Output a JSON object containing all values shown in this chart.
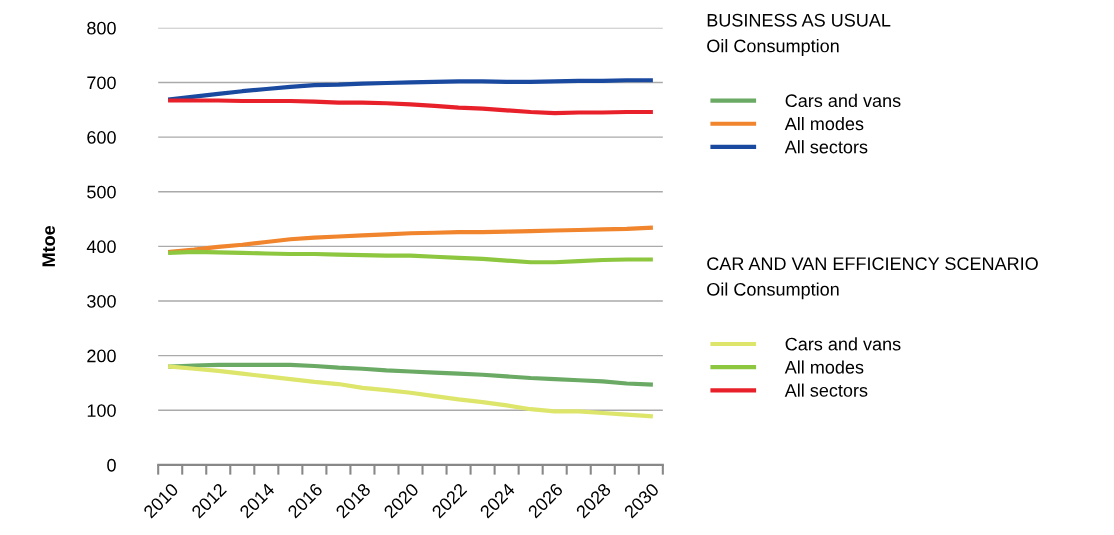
{
  "chart_data": {
    "type": "line",
    "ylabel": "Mtoe",
    "categories": [
      "2010",
      null,
      "2012",
      null,
      "2014",
      null,
      "2016",
      null,
      "2018",
      null,
      "2020",
      null,
      "2022",
      null,
      "2024",
      null,
      "2026",
      null,
      "2028",
      null,
      "2030"
    ],
    "series": [
      {
        "name": "Cars and vans",
        "color": "#6aaa64",
        "values": [
          180,
          182,
          183,
          183,
          183,
          183,
          181,
          178,
          176,
          173,
          171,
          169,
          167,
          165,
          162,
          159,
          157,
          155,
          153,
          149,
          147
        ]
      },
      {
        "name": "All modes",
        "color": "#f0852d",
        "values": [
          390,
          394,
          399,
          403,
          408,
          413,
          416,
          418,
          420,
          422,
          424,
          425,
          426,
          426,
          427,
          428,
          429,
          430,
          431,
          432,
          434
        ]
      },
      {
        "name": "All sectors",
        "color": "#1a4aa0",
        "values": [
          669,
          674,
          679,
          684,
          688,
          692,
          695,
          696,
          698,
          699,
          700,
          701,
          702,
          702,
          701,
          701,
          702,
          703,
          703,
          704,
          704
        ]
      },
      {
        "name": "Cars and vans",
        "color": "#dde56a",
        "values": [
          180,
          176,
          172,
          167,
          162,
          157,
          152,
          148,
          141,
          137,
          132,
          126,
          120,
          115,
          109,
          102,
          98,
          98,
          95,
          92,
          89
        ]
      },
      {
        "name": "All modes",
        "color": "#8dc63f",
        "values": [
          388,
          390,
          389,
          388,
          387,
          386,
          386,
          385,
          384,
          383,
          383,
          381,
          379,
          377,
          374,
          371,
          371,
          373,
          375,
          376,
          376
        ]
      },
      {
        "name": "All sectors",
        "color": "#e8202a",
        "values": [
          667,
          667,
          667,
          666,
          666,
          666,
          665,
          663,
          663,
          662,
          660,
          657,
          654,
          652,
          649,
          646,
          644,
          645,
          645,
          646,
          646
        ]
      }
    ],
    "annotations": [
      "BUSINESS AS USUAL",
      "Oil Consumption",
      "CAR AND VAN EFFICIENCY SCENARIO",
      "Oil Consumption"
    ],
    "ylim": [
      0,
      800
    ],
    "yticks": [
      0,
      100,
      200,
      300,
      400,
      500,
      600,
      700,
      800
    ],
    "grid": "y",
    "legend": "right",
    "marker": "none",
    "line_style": "solid"
  }
}
